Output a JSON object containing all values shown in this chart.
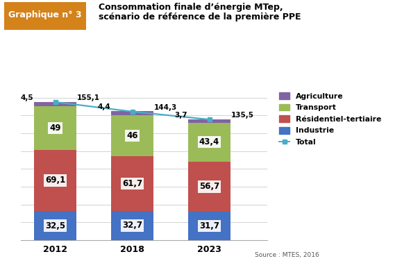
{
  "title_label": "Graphique n° 3",
  "title_text": "Consommation finale d’énergie MTep,\nscénario de référence de la première PPE",
  "source": "Source : MTES, 2016",
  "years": [
    "2012",
    "2018",
    "2023"
  ],
  "industrie": [
    32.5,
    32.7,
    31.7
  ],
  "residentiel": [
    69.1,
    61.7,
    56.7
  ],
  "transport": [
    49.0,
    46.0,
    43.4
  ],
  "agriculture": [
    4.5,
    4.4,
    3.7
  ],
  "total": [
    155.1,
    144.3,
    135.5
  ],
  "colors": {
    "industrie": "#4472C4",
    "residentiel": "#C0504D",
    "transport": "#9BBB59",
    "agriculture": "#8064A2",
    "total_line": "#4BACC6"
  },
  "bar_labels": {
    "industrie": [
      "32,5",
      "32,7",
      "31,7"
    ],
    "residentiel": [
      "69,1",
      "61,7",
      "56,7"
    ],
    "transport": [
      "49",
      "46",
      "43,4"
    ],
    "agriculture": [
      "4,5",
      "4,4",
      "3,7"
    ]
  },
  "total_labels": [
    "155,1",
    "144,3",
    "135,5"
  ],
  "legend_labels": [
    "Agriculture",
    "Transport",
    "Résidentiel-tertiaire",
    "Industrie",
    "Total"
  ],
  "header_bg": "#D4821A",
  "bar_width": 0.55,
  "ylim": [
    0,
    170
  ],
  "xlim": [
    -0.45,
    2.75
  ]
}
